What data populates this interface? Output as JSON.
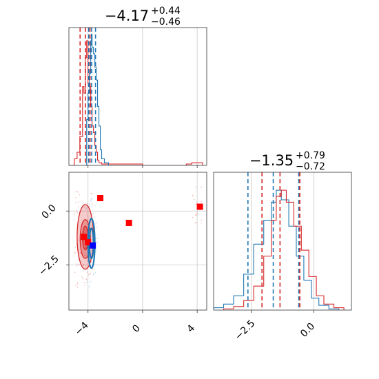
{
  "colors": {
    "blue": "#1f77b4",
    "red": "#d62728",
    "red_fill": "#e87575",
    "blue_marker": "#0000ff",
    "red_marker": "#ff0000",
    "grid": "#c8c8c8"
  },
  "chart_data": [
    {
      "type": "histogram",
      "panel": "top-left",
      "title_main": "−4.17",
      "title_sup": "+0.44",
      "title_sub": "−0.46",
      "xlim": [
        -5.4,
        4.7
      ],
      "grid": true,
      "series": [
        {
          "color": "#d62728",
          "quantiles": [
            -4.58,
            -4.19,
            -3.85
          ],
          "x": [
            -5.4,
            -5.0,
            -4.8,
            -4.6,
            -4.4,
            -4.3,
            -4.2,
            -4.1,
            -4.0,
            -3.9,
            -3.8,
            -3.7,
            -3.6,
            -3.5,
            -3.4,
            -3.3,
            -3.2,
            -3.0,
            0.0,
            3.2,
            3.6,
            4.0,
            4.4
          ],
          "y": [
            0.0,
            0.05,
            0.1,
            0.22,
            0.6,
            0.55,
            0.82,
            0.95,
            0.62,
            0.6,
            0.45,
            0.3,
            0.25,
            0.15,
            0.1,
            0.04,
            0.02,
            0.01,
            0.0,
            0.01,
            0.02,
            0.02,
            0.0
          ]
        },
        {
          "color": "#1f77b4",
          "quantiles": [
            -3.95,
            -3.73,
            -3.45
          ],
          "x": [
            -4.2,
            -4.1,
            -4.0,
            -3.9,
            -3.8,
            -3.75,
            -3.7,
            -3.6,
            -3.5,
            -3.4,
            -3.3,
            -3.2,
            -3.1,
            -3.0,
            -2.8,
            -2.5
          ],
          "y": [
            0.0,
            0.35,
            0.55,
            0.7,
            0.95,
            1.0,
            0.9,
            0.85,
            0.75,
            0.65,
            0.45,
            0.3,
            0.12,
            0.05,
            0.02,
            0.0
          ]
        }
      ]
    },
    {
      "type": "histogram",
      "panel": "bottom-right",
      "title_main": "−1.35",
      "title_sup": "+0.79",
      "title_sub": "−0.72",
      "xlim": [
        -4.0,
        1.5
      ],
      "xticks": [
        "−2.5",
        "0.0"
      ],
      "xtick_values": [
        -2.5,
        0.0
      ],
      "grid": true,
      "series": [
        {
          "color": "#1f77b4",
          "quantiles": [
            -2.63,
            -1.62,
            -0.6
          ],
          "x": [
            -4.0,
            -3.6,
            -3.2,
            -2.8,
            -2.4,
            -2.0,
            -1.7,
            -1.5,
            -1.3,
            -1.0,
            -0.7,
            -0.4,
            -0.1,
            0.2,
            0.6,
            1.0
          ],
          "y": [
            0.02,
            0.05,
            0.12,
            0.3,
            0.55,
            0.75,
            0.9,
            1.0,
            0.92,
            0.7,
            0.45,
            0.25,
            0.1,
            0.04,
            0.01,
            0.0
          ]
        },
        {
          "color": "#d62728",
          "quantiles": [
            -2.07,
            -1.35,
            -0.56
          ],
          "x": [
            -3.6,
            -3.2,
            -2.8,
            -2.4,
            -2.0,
            -1.7,
            -1.5,
            -1.3,
            -1.1,
            -0.8,
            -0.5,
            -0.2,
            0.1,
            0.4,
            0.8,
            1.2
          ],
          "y": [
            0.01,
            0.03,
            0.08,
            0.2,
            0.45,
            0.75,
            0.95,
            1.0,
            0.9,
            0.7,
            0.5,
            0.28,
            0.12,
            0.05,
            0.02,
            0.0
          ]
        }
      ]
    },
    {
      "type": "scatter_contour",
      "panel": "bottom-left",
      "xlim": [
        -5.4,
        4.7
      ],
      "ylim": [
        -4.6,
        1.8
      ],
      "xticks": [
        "−4",
        "0",
        "4"
      ],
      "xtick_values": [
        -4,
        0,
        4
      ],
      "yticks": [
        "−2.5",
        "0.0"
      ],
      "ytick_values": [
        -2.5,
        0.0
      ],
      "grid": true,
      "red_contours": [
        {
          "cx": -4.2,
          "cy": -1.2,
          "rx": 1.2,
          "ry": 3.0,
          "fill_opacity": 0.45
        },
        {
          "cx": -4.2,
          "cy": -1.3,
          "rx": 0.75,
          "ry": 1.8,
          "fill_opacity": 0.6
        },
        {
          "cx": -4.2,
          "cy": -1.25,
          "rx": 0.4,
          "ry": 1.1,
          "fill_opacity": 0.75
        }
      ],
      "blue_contours": [
        {
          "cx": -3.75,
          "cy": -1.5,
          "rx": 0.5,
          "ry": 2.3
        },
        {
          "cx": -3.75,
          "cy": -1.5,
          "rx": 0.3,
          "ry": 1.4
        }
      ],
      "red_markers": [
        [
          -3.1,
          0.6
        ],
        [
          -1.0,
          -0.55
        ],
        [
          4.2,
          0.2
        ],
        [
          -4.3,
          -1.2
        ],
        [
          -4.0,
          -1.45
        ]
      ],
      "blue_markers": [
        [
          -3.65,
          -1.6
        ]
      ]
    }
  ]
}
